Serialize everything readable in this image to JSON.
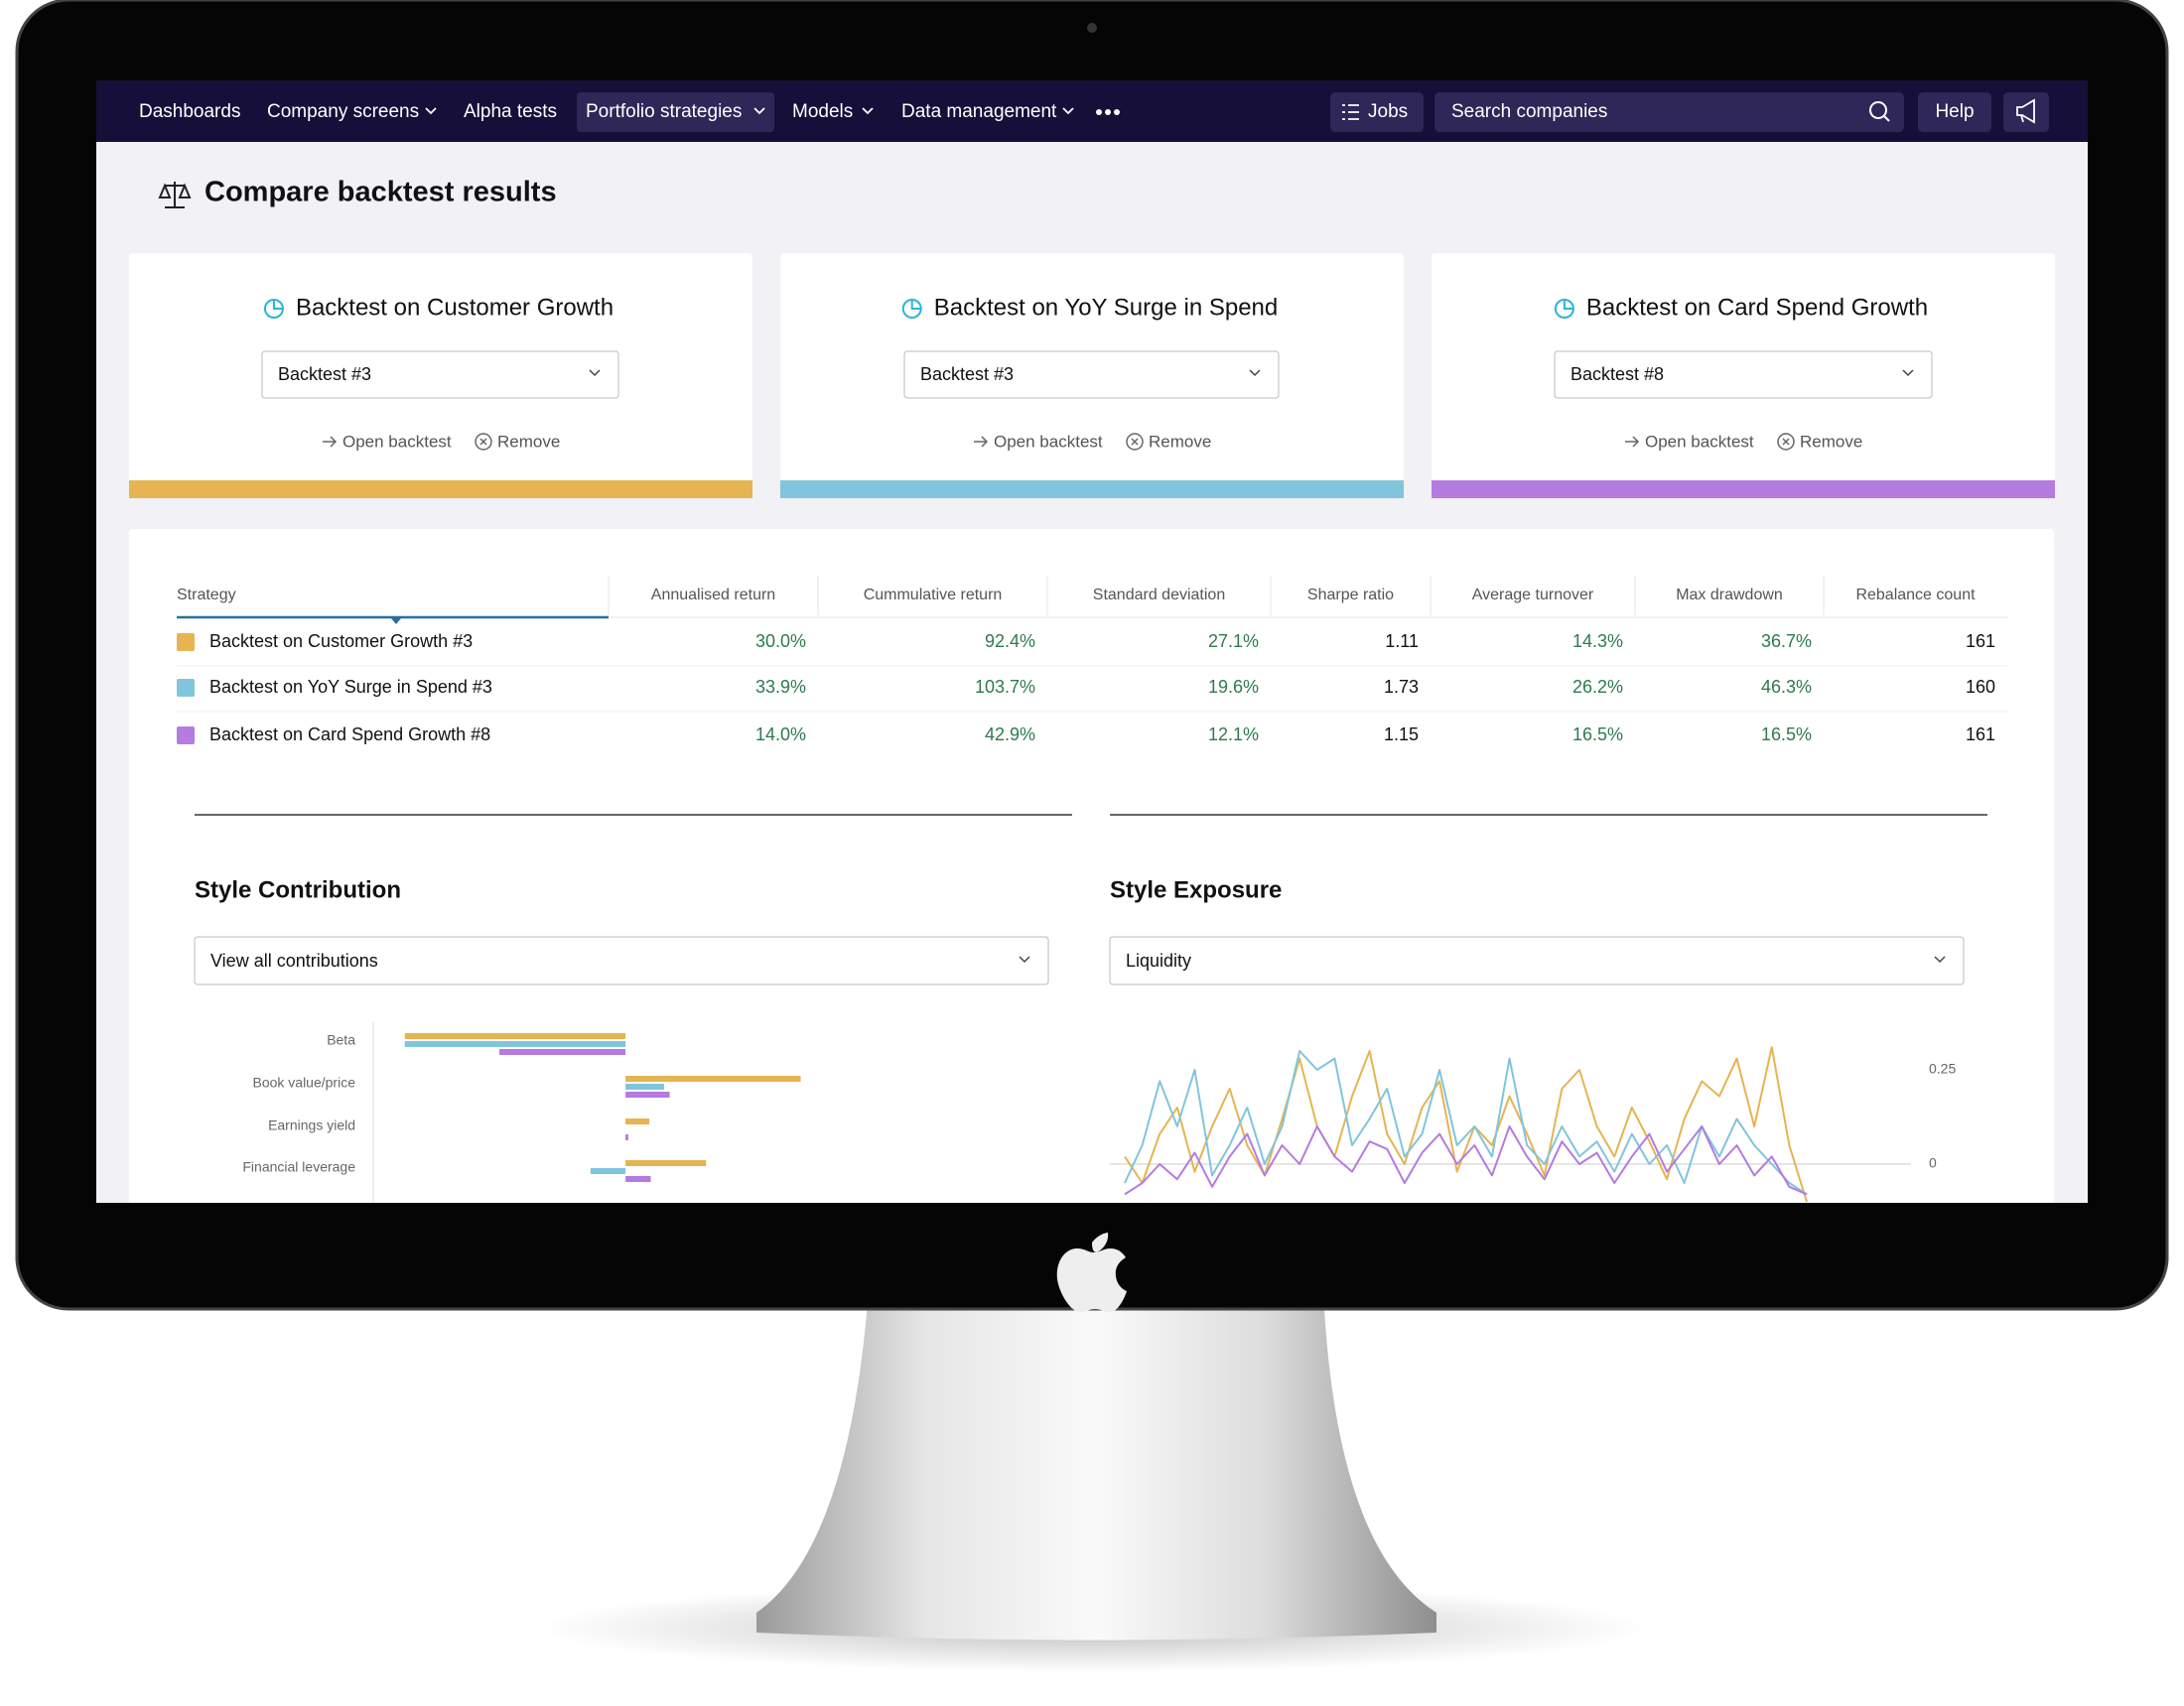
{
  "nav": {
    "items": [
      "Dashboards",
      "Company screens",
      "Alpha tests",
      "Portfolio strategies",
      "Models",
      "Data management"
    ],
    "jobs": "Jobs",
    "search": "Search companies",
    "help": "Help"
  },
  "page_title": "Compare backtest results",
  "cards": [
    {
      "title": "Backtest on Customer Growth",
      "select": "Backtest #3",
      "open": "Open backtest",
      "remove": "Remove",
      "color": "#e6b450"
    },
    {
      "title": "Backtest on YoY Surge in Spend",
      "select": "Backtest #3",
      "open": "Open backtest",
      "remove": "Remove",
      "color": "#80c5dc"
    },
    {
      "title": "Backtest on Card Spend Growth",
      "select": "Backtest #8",
      "open": "Open backtest",
      "remove": "Remove",
      "color": "#b57be0"
    }
  ],
  "table": {
    "headers": [
      "Strategy",
      "Annualised return",
      "Cummulative return",
      "Standard deviation",
      "Sharpe ratio",
      "Average turnover",
      "Max drawdown",
      "Rebalance count"
    ],
    "rows": [
      [
        "Backtest on Customer Growth #3",
        "30.0%",
        "92.4%",
        "27.1%",
        "1.11",
        "14.3%",
        "36.7%",
        "161"
      ],
      [
        "Backtest on YoY Surge in Spend #3",
        "33.9%",
        "103.7%",
        "19.6%",
        "1.73",
        "26.2%",
        "46.3%",
        "160"
      ],
      [
        "Backtest on Card Spend Growth #8",
        "14.0%",
        "42.9%",
        "12.1%",
        "1.15",
        "16.5%",
        "16.5%",
        "161"
      ]
    ]
  },
  "chart_data": [
    {
      "type": "hbar",
      "title": "Style Contribution",
      "dropdown": "View all contributions",
      "categories": [
        "Beta",
        "Book value/price",
        "Earnings yield",
        "Financial leverage"
      ],
      "xlim": [
        -0.36,
        0.5
      ],
      "series": [
        {
          "color": "#e6b450",
          "values": [
            -0.315,
            0.25,
            0.034,
            0.115
          ]
        },
        {
          "color": "#80c5dc",
          "values": [
            -0.315,
            0.055,
            0,
            -0.05
          ]
        },
        {
          "color": "#b57be0",
          "values": [
            -0.18,
            0.063,
            0.004,
            0.036
          ]
        }
      ]
    },
    {
      "type": "line",
      "title": "Style Exposure",
      "dropdown": "Liquidity",
      "ylim": [
        -0.2,
        0.35
      ],
      "yticks": [
        0.25,
        0
      ],
      "grid": true,
      "series": [
        {
          "color": "#e6b450",
          "values": [
            0.02,
            -0.05,
            0.08,
            0.15,
            -0.02,
            0.1,
            0.2,
            0.05,
            -0.03,
            0.12,
            0.28,
            0.1,
            0.02,
            0.18,
            0.3,
            0.08,
            0.0,
            0.15,
            0.22,
            -0.02,
            0.1,
            0.05,
            0.18,
            0.08,
            -0.03,
            0.2,
            0.25,
            0.1,
            0.02,
            0.15,
            0.06,
            -0.04,
            0.12,
            0.22,
            0.18,
            0.28,
            0.1,
            0.31,
            0.05,
            -0.1
          ]
        },
        {
          "color": "#80c5dc",
          "values": [
            -0.05,
            0.05,
            0.22,
            0.1,
            0.25,
            -0.03,
            0.05,
            0.15,
            0.0,
            0.1,
            0.3,
            0.25,
            0.28,
            0.05,
            0.12,
            0.2,
            0.02,
            0.08,
            0.25,
            0.05,
            0.1,
            0.02,
            0.28,
            0.05,
            0.0,
            0.1,
            0.02,
            0.06,
            -0.02,
            0.08,
            0.0,
            0.05,
            -0.05,
            0.1,
            0.02,
            0.12,
            0.05,
            0.0,
            -0.05,
            -0.08
          ]
        },
        {
          "color": "#b57be0",
          "values": [
            -0.08,
            -0.05,
            0.0,
            -0.04,
            0.03,
            -0.06,
            0.02,
            0.08,
            -0.03,
            0.05,
            0.0,
            0.1,
            0.02,
            -0.02,
            0.06,
            0.04,
            -0.05,
            0.03,
            0.08,
            0.0,
            0.05,
            -0.03,
            0.1,
            0.02,
            -0.04,
            0.06,
            0.0,
            0.03,
            -0.05,
            0.02,
            0.08,
            -0.02,
            0.04,
            0.1,
            0.0,
            0.05,
            -0.03,
            0.02,
            -0.06,
            -0.08
          ]
        }
      ]
    }
  ]
}
